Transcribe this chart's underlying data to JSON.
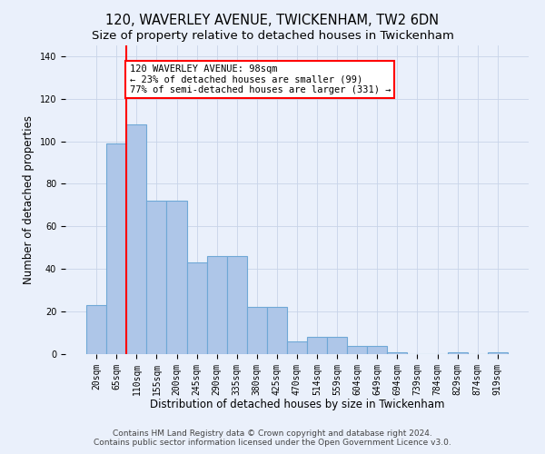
{
  "title": "120, WAVERLEY AVENUE, TWICKENHAM, TW2 6DN",
  "subtitle": "Size of property relative to detached houses in Twickenham",
  "xlabel": "Distribution of detached houses by size in Twickenham",
  "ylabel": "Number of detached properties",
  "categories": [
    "20sqm",
    "65sqm",
    "110sqm",
    "155sqm",
    "200sqm",
    "245sqm",
    "290sqm",
    "335sqm",
    "380sqm",
    "425sqm",
    "470sqm",
    "514sqm",
    "559sqm",
    "604sqm",
    "649sqm",
    "694sqm",
    "739sqm",
    "784sqm",
    "829sqm",
    "874sqm",
    "919sqm"
  ],
  "values": [
    23,
    99,
    108,
    72,
    72,
    43,
    46,
    46,
    22,
    22,
    6,
    8,
    8,
    4,
    4,
    1,
    0,
    0,
    1,
    0,
    1
  ],
  "bar_color": "#aec6e8",
  "bar_edge_color": "#6fa8d6",
  "bg_color": "#eaf0fb",
  "grid_color": "#c8d4e8",
  "red_line_index": 2,
  "annotation_line1": "120 WAVERLEY AVENUE: 98sqm",
  "annotation_line2": "← 23% of detached houses are smaller (99)",
  "annotation_line3": "77% of semi-detached houses are larger (331) →",
  "annotation_box_color": "white",
  "annotation_box_edge": "red",
  "ylim": [
    0,
    145
  ],
  "yticks": [
    0,
    20,
    40,
    60,
    80,
    100,
    120,
    140
  ],
  "footer1": "Contains HM Land Registry data © Crown copyright and database right 2024.",
  "footer2": "Contains public sector information licensed under the Open Government Licence v3.0.",
  "title_fontsize": 10.5,
  "subtitle_fontsize": 9.5,
  "xlabel_fontsize": 8.5,
  "ylabel_fontsize": 8.5,
  "tick_fontsize": 7,
  "annotation_fontsize": 7.5,
  "footer_fontsize": 6.5
}
